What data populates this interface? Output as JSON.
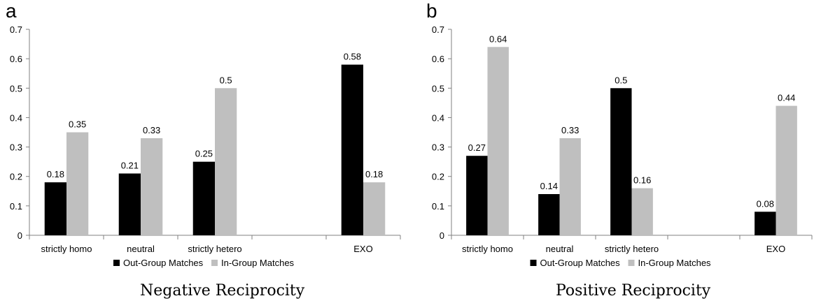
{
  "chart_data": [
    {
      "type": "bar",
      "panel_label": "a",
      "caption": "Negative Reciprocity",
      "categories": [
        "strictly homo",
        "neutral",
        "strictly hetero",
        "",
        "EXO"
      ],
      "series": [
        {
          "name": "Out-Group Matches",
          "color": "#000000",
          "values": [
            0.18,
            0.21,
            0.25,
            null,
            0.58
          ]
        },
        {
          "name": "In-Group Matches",
          "color": "#bfbfbf",
          "values": [
            0.35,
            0.33,
            0.5,
            null,
            0.18
          ]
        }
      ],
      "yticks": [
        "0",
        "0.1",
        "0.2",
        "0.3",
        "0.4",
        "0.5",
        "0.6",
        "0.7"
      ],
      "ylim": [
        0,
        0.7
      ],
      "legend": "bottom",
      "grid": false
    },
    {
      "type": "bar",
      "panel_label": "b",
      "caption": "Positive Reciprocity",
      "categories": [
        "strictly homo",
        "neutral",
        "strictly hetero",
        "",
        "EXO"
      ],
      "series": [
        {
          "name": "Out-Group Matches",
          "color": "#000000",
          "values": [
            0.27,
            0.14,
            0.5,
            null,
            0.08
          ]
        },
        {
          "name": "In-Group Matches",
          "color": "#bfbfbf",
          "values": [
            0.64,
            0.33,
            0.16,
            null,
            0.44
          ]
        }
      ],
      "yticks": [
        "0",
        "0.1",
        "0.2",
        "0.3",
        "0.4",
        "0.5",
        "0.6",
        "0.7"
      ],
      "ylim": [
        0,
        0.7
      ],
      "legend": "bottom",
      "grid": false
    }
  ]
}
